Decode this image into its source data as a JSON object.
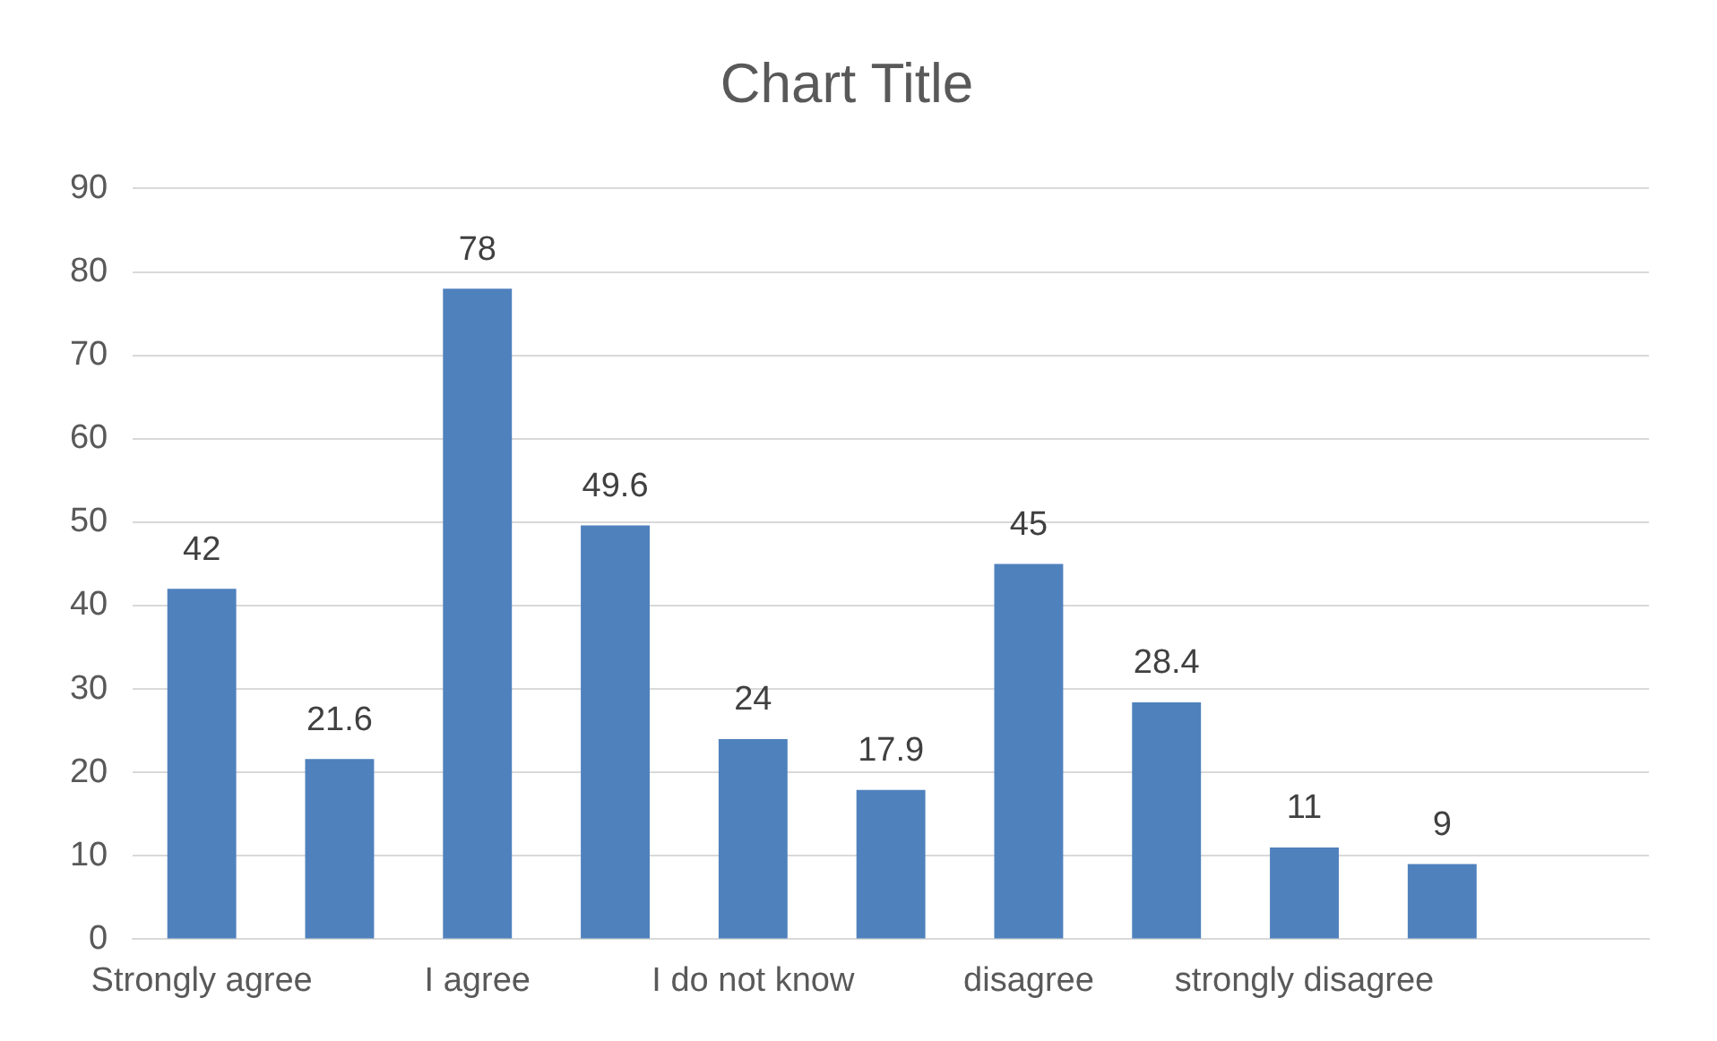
{
  "chart_data": {
    "type": "bar",
    "title": "Chart Title",
    "categories": [
      "Strongly agree",
      null,
      "I agree",
      null,
      "I do not know",
      null,
      "disagree",
      null,
      "strongly disagree",
      null,
      null
    ],
    "values": [
      42,
      21.6,
      78,
      49.6,
      24,
      17.9,
      45,
      28.4,
      11,
      9,
      null
    ],
    "color": "#4f81bd",
    "ylim": [
      0,
      90
    ],
    "yticks": [
      0,
      10,
      20,
      30,
      40,
      50,
      60,
      70,
      80,
      90
    ],
    "grid": "y",
    "data_labels": true
  }
}
